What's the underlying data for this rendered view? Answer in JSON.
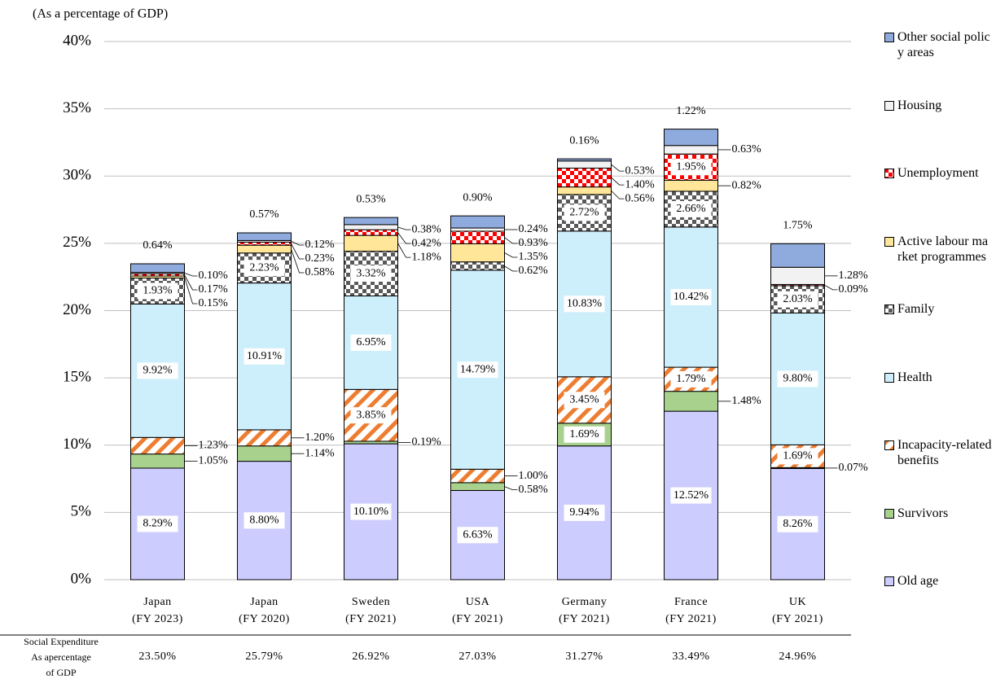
{
  "chart_data": {
    "type": "stacked_bar",
    "y_title": "(As a percentage of GDP)",
    "categories": [
      [
        "Japan",
        "(FY 2023)"
      ],
      [
        "Japan",
        "(FY 2020)"
      ],
      [
        "Sweden",
        "(FY 2021)"
      ],
      [
        "USA",
        "(FY 2021)"
      ],
      [
        "Germany",
        "(FY 2021)"
      ],
      [
        "France",
        "(FY 2021)"
      ],
      [
        "UK",
        "(FY 2021)"
      ]
    ],
    "ylim": [
      0,
      40
    ],
    "yticks": [
      {
        "value": 0,
        "label": "0%"
      },
      {
        "value": 5,
        "label": "5%"
      },
      {
        "value": 10,
        "label": "10%"
      },
      {
        "value": 15,
        "label": "15%"
      },
      {
        "value": 20,
        "label": "20%"
      },
      {
        "value": 25,
        "label": "25%"
      },
      {
        "value": 30,
        "label": "30%"
      },
      {
        "value": 35,
        "label": "35%"
      },
      {
        "value": 40,
        "label": "40%"
      }
    ],
    "grid": true,
    "legend": "right",
    "series": [
      {
        "name": "Old age",
        "color": "#ccccff",
        "pattern": "solid",
        "values": [
          8.29,
          8.8,
          10.1,
          6.63,
          9.94,
          12.52,
          8.26
        ],
        "value_labels": [
          "8.29%",
          "8.80%",
          "10.10%",
          "6.63%",
          "9.94%",
          "12.52%",
          "8.26%"
        ]
      },
      {
        "name": "Survivors",
        "color": "#a9d18e",
        "pattern": "solid",
        "values": [
          1.05,
          1.14,
          0.19,
          0.58,
          1.69,
          1.48,
          0.07
        ],
        "value_labels": [
          "1.05%",
          "1.14%",
          "0.19%",
          "0.58%",
          "1.69%",
          "1.48%",
          "0.07%"
        ]
      },
      {
        "name": "Incapacity-related benefits",
        "color": "#ed7d31",
        "pattern": "stripes",
        "values": [
          1.23,
          1.2,
          3.85,
          1.0,
          3.45,
          1.79,
          1.69
        ],
        "value_labels": [
          "1.23%",
          "1.20%",
          "3.85%",
          "1.00%",
          "3.45%",
          "1.79%",
          "1.69%"
        ]
      },
      {
        "name": "Health",
        "color": "#cdeefb",
        "pattern": "solid",
        "values": [
          9.92,
          10.91,
          6.95,
          14.79,
          10.83,
          10.42,
          9.8
        ],
        "value_labels": [
          "9.92%",
          "10.91%",
          "6.95%",
          "14.79%",
          "10.83%",
          "10.42%",
          "9.80%"
        ]
      },
      {
        "name": "Family",
        "color": "#595959",
        "pattern": "checker",
        "values": [
          1.93,
          2.23,
          3.32,
          0.62,
          2.72,
          2.66,
          2.03
        ],
        "value_labels": [
          "1.93%",
          "2.23%",
          "3.32%",
          "0.62%",
          "2.72%",
          "2.66%",
          "2.03%"
        ]
      },
      {
        "name": "Active labour market programmes",
        "color": "#ffe699",
        "pattern": "solid",
        "values": [
          0.15,
          0.58,
          1.18,
          1.35,
          0.56,
          0.82,
          null
        ],
        "value_labels": [
          "0.15%",
          "0.58%",
          "1.18%",
          "1.35%",
          "0.56%",
          "0.82%",
          null
        ]
      },
      {
        "name": "Unemployment",
        "color": "#ff0000",
        "pattern": "checker",
        "values": [
          0.17,
          0.23,
          0.42,
          0.93,
          1.4,
          1.95,
          0.09
        ],
        "value_labels": [
          "0.17%",
          "0.23%",
          "0.42%",
          "0.93%",
          "1.40%",
          "1.95%",
          "0.09%"
        ]
      },
      {
        "name": "Housing",
        "color": "#f2f2f2",
        "pattern": "solid",
        "values": [
          0.1,
          0.12,
          0.38,
          0.24,
          0.53,
          0.63,
          1.28
        ],
        "value_labels": [
          "0.10%",
          "0.12%",
          "0.38%",
          "0.24%",
          "0.53%",
          "0.63%",
          "1.28%"
        ]
      },
      {
        "name": "Other social policy areas",
        "color": "#8faadc",
        "pattern": "solid",
        "values": [
          0.64,
          0.57,
          0.53,
          0.9,
          0.16,
          1.22,
          1.75
        ],
        "value_labels": [
          "0.64%",
          "0.57%",
          "0.53%",
          "0.90%",
          "0.16%",
          "1.22%",
          "1.75%"
        ]
      }
    ],
    "totals_row": {
      "label": [
        "Social Expenditure",
        "As apercentage",
        "of GDP"
      ],
      "values": [
        "23.50%",
        "25.79%",
        "26.92%",
        "27.03%",
        "31.27%",
        "33.49%",
        "24.96%"
      ]
    }
  }
}
